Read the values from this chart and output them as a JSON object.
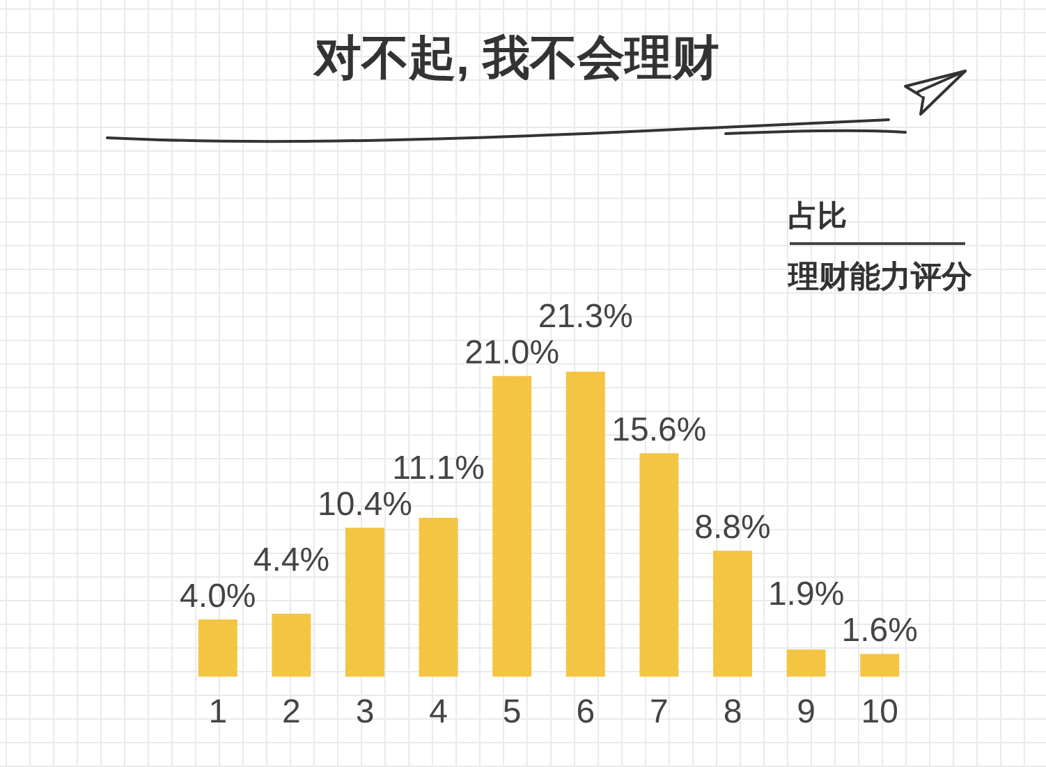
{
  "chart_data": {
    "type": "bar",
    "title": "对不起, 我不会理财",
    "xlabel": "理财能力评分",
    "annotations": [
      "占比"
    ],
    "categories": [
      "1",
      "2",
      "3",
      "4",
      "5",
      "6",
      "7",
      "8",
      "9",
      "10"
    ],
    "values": [
      4.0,
      4.4,
      10.4,
      11.1,
      21.0,
      21.3,
      15.6,
      8.8,
      1.9,
      1.6
    ],
    "value_labels": [
      "4.0%",
      "4.4%",
      "10.4%",
      "11.1%",
      "21.0%",
      "21.3%",
      "15.6%",
      "8.8%",
      "1.9%",
      "1.6%"
    ],
    "color": "#f4c542"
  }
}
